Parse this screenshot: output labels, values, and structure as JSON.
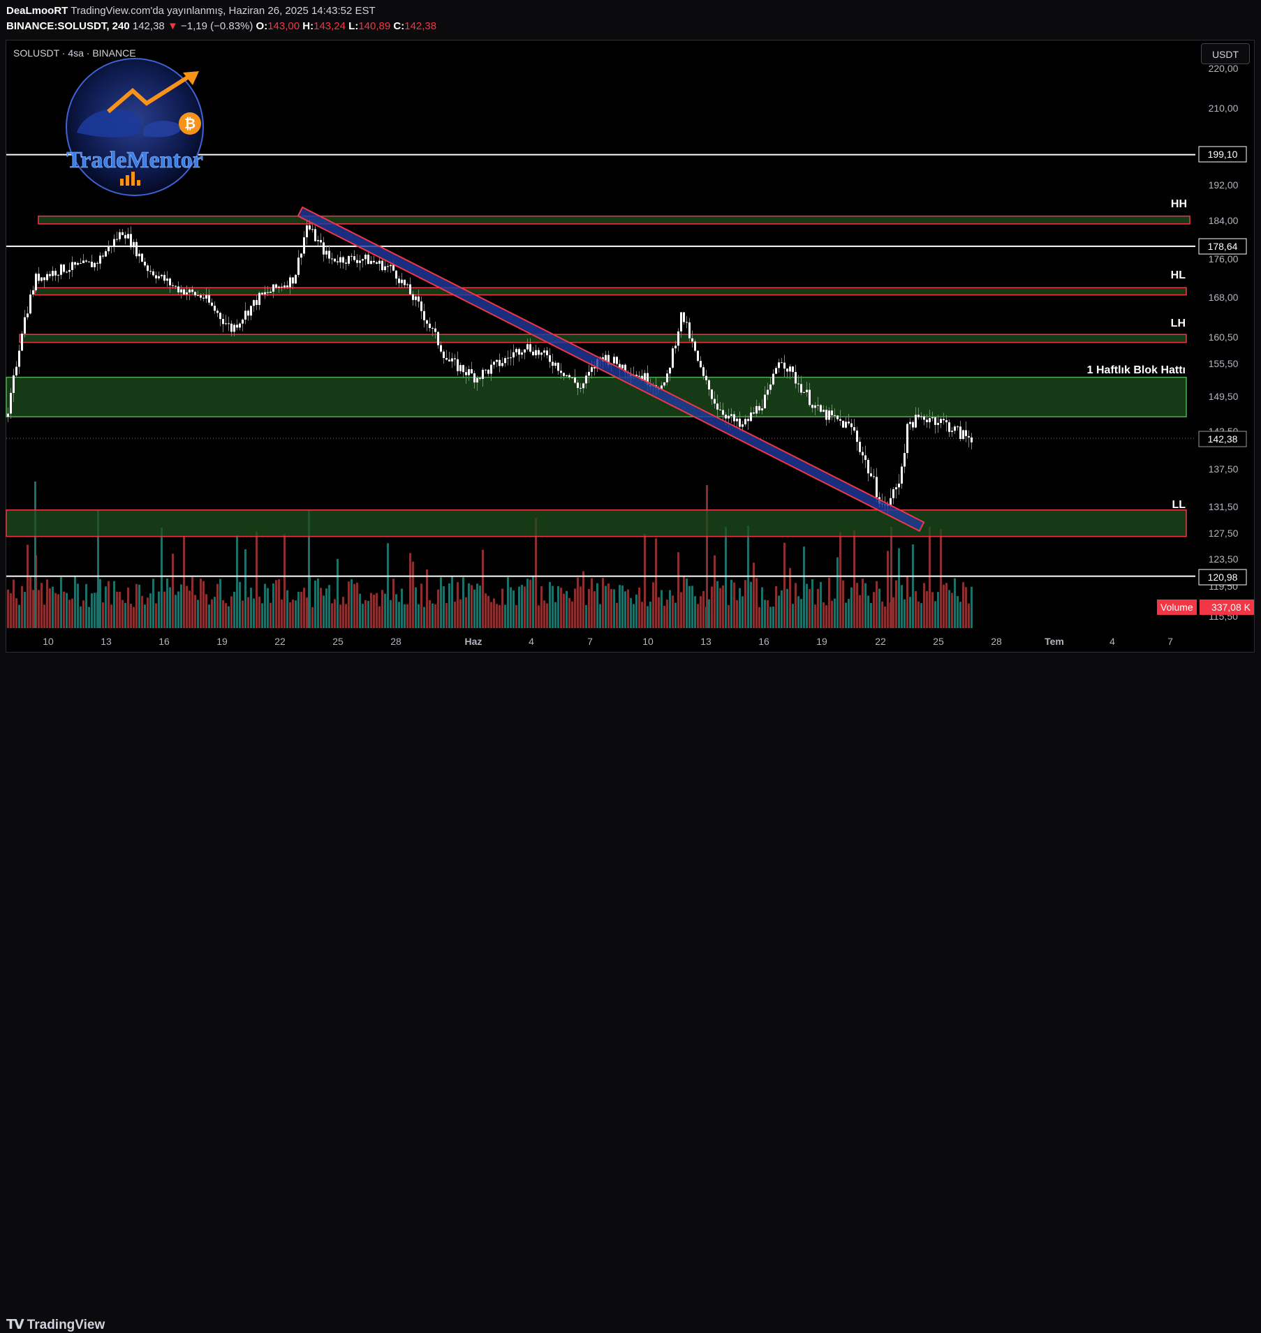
{
  "header": {
    "author": "DeaLmooRT",
    "published": "TradingView.com'da yayınlanmış, Haziran 26, 2025 14:43:52 EST",
    "symbol": "BINANCE:SOLUSDT, 240",
    "last": "142,38",
    "change": "−1,19 (−0.83%)",
    "open_label": "O:",
    "open": "143,00",
    "high_label": "H:",
    "high": "143,24",
    "low_label": "L:",
    "low": "140,89",
    "close_label": "C:",
    "close": "142,38"
  },
  "chart": {
    "symbol_label": "SOLUSDT · 4sa · BINANCE",
    "currency": "USDT",
    "watermark": "TradeMentor",
    "volume_label": "Volume",
    "volume_value": "337,08 K",
    "colors": {
      "up": "#26a69a",
      "down": "#ef5350",
      "zone_fill": "#1e4d1e",
      "zone_border_red": "#f23645",
      "zone_border_green": "#4caf50",
      "channel_fill": "#1f3a9e"
    }
  },
  "price_axis": {
    "ticks": [
      "220,00",
      "210,00",
      "192,00",
      "184,00",
      "176,00",
      "168,00",
      "160,50",
      "155,50",
      "149,50",
      "143,50",
      "137,50",
      "131,50",
      "127,50",
      "123,50",
      "119,50",
      "115,50"
    ],
    "flags": [
      "199,10",
      "178,64",
      "142,38",
      "120,98"
    ]
  },
  "time_axis": {
    "ticks": [
      "10",
      "13",
      "16",
      "19",
      "22",
      "25",
      "28",
      "Haz",
      "4",
      "7",
      "10",
      "13",
      "16",
      "19",
      "22",
      "25",
      "28",
      "Tem",
      "4",
      "7"
    ]
  },
  "annotations": [
    "HH",
    "HL",
    "LH",
    "1 Haftlık Blok Hattı",
    "LL"
  ],
  "chart_data": {
    "type": "candlestick",
    "price_levels": [
      199.1,
      178.64,
      120.98
    ],
    "last_price": 142.38,
    "zones": [
      {
        "label": "HH",
        "from": 183.3,
        "to": 185.0
      },
      {
        "label": "HL",
        "from": 168.5,
        "to": 170.0
      },
      {
        "label": "LH",
        "from": 159.5,
        "to": 161.0
      },
      {
        "label": "1 Haftlık Blok Hattı",
        "from": 146.0,
        "to": 153.0
      },
      {
        "label": "LL",
        "from": 127.0,
        "to": 131.0
      }
    ],
    "channel": {
      "start": [
        "22 May",
        186.0
      ],
      "end": [
        "22 Jun",
        128.5
      ]
    }
  },
  "footer": {
    "brand": "TradingView"
  }
}
